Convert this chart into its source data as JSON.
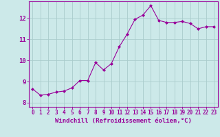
{
  "x": [
    0,
    1,
    2,
    3,
    4,
    5,
    6,
    7,
    8,
    9,
    10,
    11,
    12,
    13,
    14,
    15,
    16,
    17,
    18,
    19,
    20,
    21,
    22,
    23
  ],
  "y": [
    8.65,
    8.35,
    8.4,
    8.5,
    8.55,
    8.7,
    9.05,
    9.05,
    9.9,
    9.55,
    9.85,
    10.65,
    11.25,
    11.95,
    12.15,
    12.6,
    11.9,
    11.8,
    11.8,
    11.85,
    11.75,
    11.5,
    11.6,
    11.6
  ],
  "line_color": "#990099",
  "marker": "D",
  "marker_size": 2,
  "bg_color": "#cce9e9",
  "grid_color": "#aacccc",
  "xlabel": "Windchill (Refroidissement éolien,°C)",
  "xlabel_color": "#990099",
  "tick_color": "#990099",
  "ylabel_ticks": [
    8,
    9,
    10,
    11,
    12
  ],
  "xlim": [
    -0.5,
    23.5
  ],
  "ylim": [
    7.8,
    12.8
  ],
  "label_fontsize": 6.5,
  "tick_fontsize": 5.5
}
